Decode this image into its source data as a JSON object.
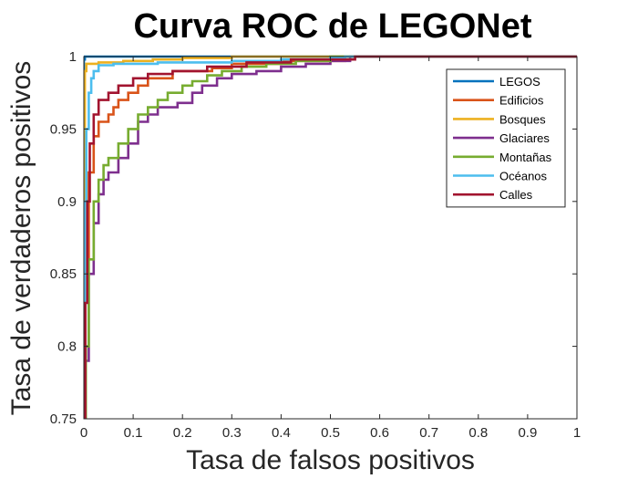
{
  "chart_data": {
    "type": "line",
    "title": "Curva ROC de LEGONet",
    "xlabel": "Tasa de falsos positivos",
    "ylabel": "Tasa de verdaderos positivos",
    "xlim": [
      0,
      1
    ],
    "ylim": [
      0.75,
      1
    ],
    "xticks": [
      "0",
      "0.1",
      "0.2",
      "0.3",
      "0.4",
      "0.5",
      "0.6",
      "0.7",
      "0.8",
      "0.9",
      "1"
    ],
    "yticks": [
      "0.75",
      "0.8",
      "0.85",
      "0.9",
      "0.95",
      "1"
    ],
    "grid": false,
    "legend_position": "top-right",
    "series": [
      {
        "name": "LEGOS",
        "color": "#0072BD",
        "points": [
          [
            0,
            0.75
          ],
          [
            0,
            0.998
          ],
          [
            0.002,
            1
          ],
          [
            1,
            1
          ]
        ]
      },
      {
        "name": "Edificios",
        "color": "#D95319",
        "points": [
          [
            0,
            0.75
          ],
          [
            0.003,
            0.86
          ],
          [
            0.01,
            0.92
          ],
          [
            0.02,
            0.945
          ],
          [
            0.03,
            0.955
          ],
          [
            0.05,
            0.96
          ],
          [
            0.06,
            0.965
          ],
          [
            0.07,
            0.97
          ],
          [
            0.09,
            0.975
          ],
          [
            0.11,
            0.98
          ],
          [
            0.13,
            0.985
          ],
          [
            0.18,
            0.99
          ],
          [
            0.26,
            0.992
          ],
          [
            0.3,
            0.995
          ],
          [
            0.4,
            0.997
          ],
          [
            0.53,
            1
          ],
          [
            1,
            1
          ]
        ]
      },
      {
        "name": "Bosques",
        "color": "#EDB120",
        "points": [
          [
            0,
            0.75
          ],
          [
            0.002,
            0.99
          ],
          [
            0.005,
            0.995
          ],
          [
            0.03,
            0.996
          ],
          [
            0.08,
            0.997
          ],
          [
            0.14,
            0.998
          ],
          [
            0.2,
            0.999
          ],
          [
            0.3,
            1
          ],
          [
            1,
            1
          ]
        ]
      },
      {
        "name": "Glaciares",
        "color": "#7E2F8E",
        "points": [
          [
            0,
            0.75
          ],
          [
            0.004,
            0.79
          ],
          [
            0.01,
            0.85
          ],
          [
            0.02,
            0.885
          ],
          [
            0.03,
            0.905
          ],
          [
            0.04,
            0.915
          ],
          [
            0.05,
            0.92
          ],
          [
            0.07,
            0.93
          ],
          [
            0.09,
            0.94
          ],
          [
            0.11,
            0.955
          ],
          [
            0.13,
            0.96
          ],
          [
            0.15,
            0.965
          ],
          [
            0.19,
            0.968
          ],
          [
            0.22,
            0.975
          ],
          [
            0.24,
            0.98
          ],
          [
            0.27,
            0.985
          ],
          [
            0.3,
            0.988
          ],
          [
            0.35,
            0.99
          ],
          [
            0.4,
            0.993
          ],
          [
            0.45,
            0.995
          ],
          [
            0.5,
            0.997
          ],
          [
            0.54,
            1
          ],
          [
            1,
            1
          ]
        ]
      },
      {
        "name": "Montañas",
        "color": "#77AC30",
        "points": [
          [
            0,
            0.75
          ],
          [
            0.004,
            0.8
          ],
          [
            0.01,
            0.86
          ],
          [
            0.02,
            0.9
          ],
          [
            0.03,
            0.915
          ],
          [
            0.04,
            0.925
          ],
          [
            0.05,
            0.93
          ],
          [
            0.07,
            0.94
          ],
          [
            0.09,
            0.95
          ],
          [
            0.11,
            0.96
          ],
          [
            0.13,
            0.965
          ],
          [
            0.15,
            0.97
          ],
          [
            0.17,
            0.975
          ],
          [
            0.2,
            0.98
          ],
          [
            0.22,
            0.983
          ],
          [
            0.25,
            0.987
          ],
          [
            0.28,
            0.99
          ],
          [
            0.32,
            0.993
          ],
          [
            0.37,
            0.995
          ],
          [
            0.43,
            0.997
          ],
          [
            0.5,
            1
          ],
          [
            1,
            1
          ]
        ]
      },
      {
        "name": "Océanos",
        "color": "#4DBEEE",
        "points": [
          [
            0,
            0.75
          ],
          [
            0.002,
            0.9
          ],
          [
            0.005,
            0.95
          ],
          [
            0.01,
            0.975
          ],
          [
            0.015,
            0.985
          ],
          [
            0.02,
            0.99
          ],
          [
            0.03,
            0.994
          ],
          [
            0.06,
            0.995
          ],
          [
            0.15,
            0.996
          ],
          [
            0.3,
            0.997
          ],
          [
            0.4,
            0.998
          ],
          [
            0.5,
            0.999
          ],
          [
            0.53,
            1
          ],
          [
            1,
            1
          ]
        ]
      },
      {
        "name": "Calles",
        "color": "#A2142F",
        "points": [
          [
            0,
            0.75
          ],
          [
            0.003,
            0.83
          ],
          [
            0.007,
            0.9
          ],
          [
            0.012,
            0.94
          ],
          [
            0.02,
            0.96
          ],
          [
            0.03,
            0.97
          ],
          [
            0.05,
            0.975
          ],
          [
            0.07,
            0.98
          ],
          [
            0.1,
            0.985
          ],
          [
            0.13,
            0.988
          ],
          [
            0.18,
            0.99
          ],
          [
            0.25,
            0.993
          ],
          [
            0.33,
            0.996
          ],
          [
            0.42,
            0.998
          ],
          [
            0.55,
            1
          ],
          [
            1,
            1
          ]
        ]
      }
    ]
  }
}
